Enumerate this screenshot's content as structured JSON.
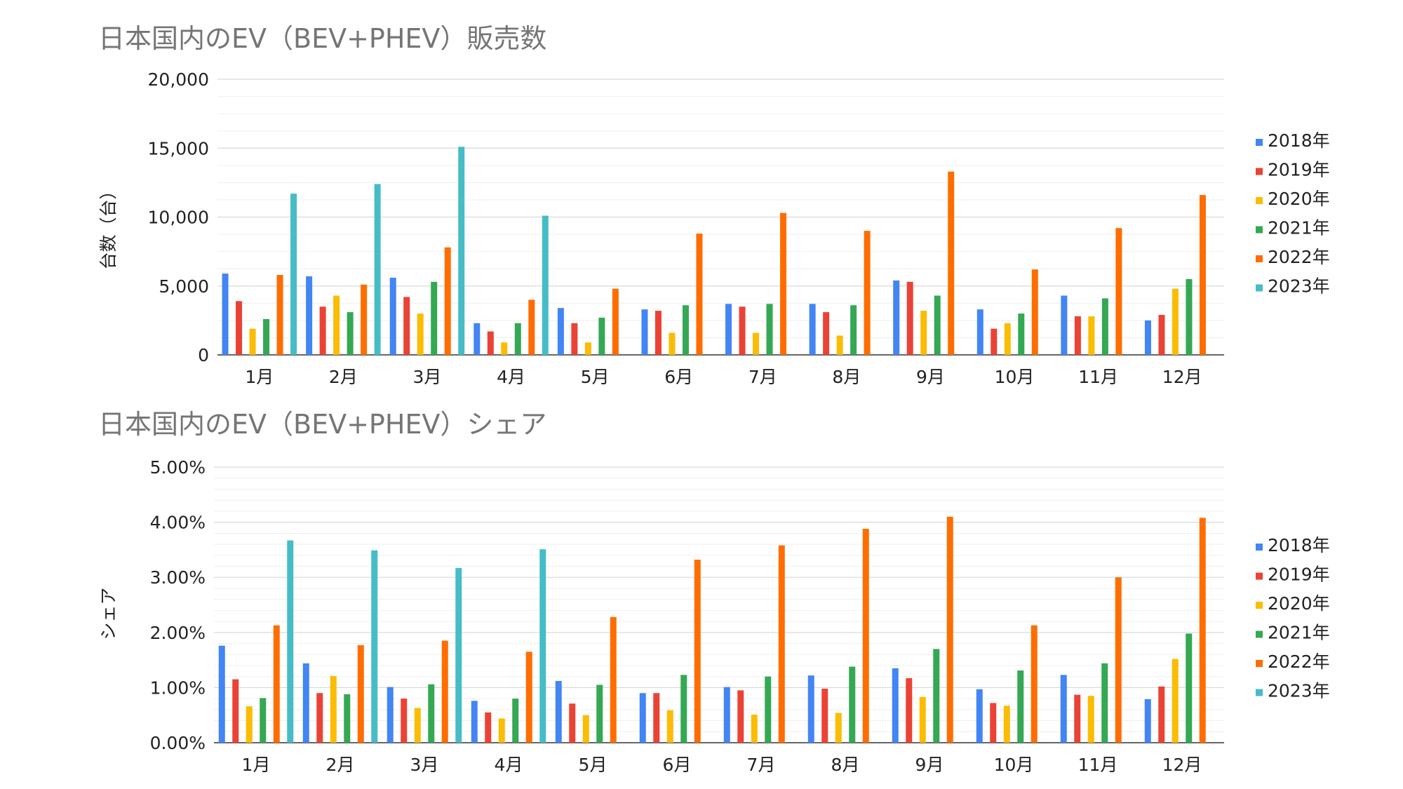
{
  "chart_data": [
    {
      "type": "bar",
      "title": "日本国内のEV（BEV+PHEV）販売数",
      "ylabel": "台数（台）",
      "xlabel": "",
      "ylim": [
        0,
        20000
      ],
      "yticks": [
        0,
        5000,
        10000,
        15000,
        20000
      ],
      "ytick_labels": [
        "0",
        "5,000",
        "10,000",
        "15,000",
        "20,000"
      ],
      "grid": true,
      "legend": "right",
      "categories": [
        "1月",
        "2月",
        "3月",
        "4月",
        "5月",
        "6月",
        "7月",
        "8月",
        "9月",
        "10月",
        "11月",
        "12月"
      ],
      "series": [
        {
          "name": "2018年",
          "color": "#4285f4",
          "values": [
            5900,
            5700,
            5600,
            2300,
            3400,
            3300,
            3700,
            3700,
            5400,
            3300,
            4300,
            2500
          ]
        },
        {
          "name": "2019年",
          "color": "#ea4335",
          "values": [
            3900,
            3500,
            4200,
            1700,
            2300,
            3200,
            3500,
            3100,
            5300,
            1900,
            2800,
            2900
          ]
        },
        {
          "name": "2020年",
          "color": "#fbbc04",
          "values": [
            1900,
            4300,
            3000,
            900,
            900,
            1600,
            1600,
            1400,
            3200,
            2300,
            2800,
            4800
          ]
        },
        {
          "name": "2021年",
          "color": "#34a853",
          "values": [
            2600,
            3100,
            5300,
            2300,
            2700,
            3600,
            3700,
            3600,
            4300,
            3000,
            4100,
            5500
          ]
        },
        {
          "name": "2022年",
          "color": "#ff6d01",
          "values": [
            5800,
            5100,
            7800,
            4000,
            4800,
            8800,
            10300,
            9000,
            13300,
            6200,
            9200,
            11600
          ]
        },
        {
          "name": "2023年",
          "color": "#46bdc6",
          "values": [
            11700,
            12400,
            15100,
            10100,
            null,
            null,
            null,
            null,
            null,
            null,
            null,
            null
          ]
        }
      ]
    },
    {
      "type": "bar",
      "title": "日本国内のEV（BEV+PHEV）シェア",
      "ylabel": "シェア",
      "xlabel": "",
      "ylim": [
        0,
        5
      ],
      "yticks": [
        0,
        1,
        2,
        3,
        4,
        5
      ],
      "ytick_labels": [
        "0.00%",
        "1.00%",
        "2.00%",
        "3.00%",
        "4.00%",
        "5.00%"
      ],
      "grid": true,
      "legend": "right",
      "categories": [
        "1月",
        "2月",
        "3月",
        "4月",
        "5月",
        "6月",
        "7月",
        "8月",
        "9月",
        "10月",
        "11月",
        "12月"
      ],
      "series": [
        {
          "name": "2018年",
          "color": "#4285f4",
          "values": [
            1.76,
            1.44,
            1.01,
            0.76,
            1.12,
            0.9,
            1.01,
            1.22,
            1.35,
            0.97,
            1.23,
            0.79
          ]
        },
        {
          "name": "2019年",
          "color": "#ea4335",
          "values": [
            1.15,
            0.9,
            0.8,
            0.55,
            0.71,
            0.9,
            0.95,
            0.98,
            1.17,
            0.72,
            0.87,
            1.02
          ]
        },
        {
          "name": "2020年",
          "color": "#fbbc04",
          "values": [
            0.66,
            1.21,
            0.63,
            0.44,
            0.5,
            0.59,
            0.51,
            0.54,
            0.83,
            0.67,
            0.85,
            1.52
          ]
        },
        {
          "name": "2021年",
          "color": "#34a853",
          "values": [
            0.81,
            0.88,
            1.06,
            0.8,
            1.05,
            1.23,
            1.2,
            1.38,
            1.7,
            1.31,
            1.44,
            1.98
          ]
        },
        {
          "name": "2022年",
          "color": "#ff6d01",
          "values": [
            2.13,
            1.77,
            1.85,
            1.65,
            2.28,
            3.32,
            3.58,
            3.88,
            4.1,
            2.13,
            3.0,
            4.08
          ]
        },
        {
          "name": "2023年",
          "color": "#46bdc6",
          "values": [
            3.67,
            3.49,
            3.17,
            3.51,
            null,
            null,
            null,
            null,
            null,
            null,
            null,
            null
          ]
        }
      ]
    }
  ]
}
